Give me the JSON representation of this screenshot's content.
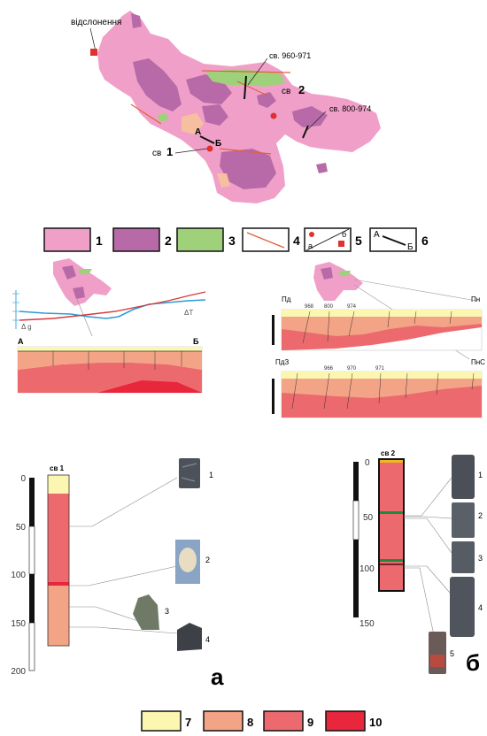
{
  "map": {
    "outcrop_label": "відслонення",
    "profile_labels": {
      "pr_960_971": "св. 960-971",
      "pr_800_974": "св. 800-974"
    },
    "well_1": {
      "prefix": "св",
      "number": "1"
    },
    "well_2": {
      "prefix": "св",
      "number": "2"
    },
    "section_letters": {
      "a": "А",
      "b": "Б"
    }
  },
  "legend_top": {
    "items": [
      {
        "num": "1",
        "color": "#f0a0c8"
      },
      {
        "num": "2",
        "color": "#b86aa8"
      },
      {
        "num": "3",
        "color": "#9fd07a"
      },
      {
        "num": "4",
        "line_color": "#e0603a"
      },
      {
        "num": "5",
        "sub_a": "а",
        "sub_b": "б"
      },
      {
        "num": "6",
        "letter_a": "А",
        "letter_b": "Б"
      }
    ]
  },
  "sections": {
    "left": {
      "end_a": "А",
      "end_b": "Б",
      "t_label": "ΔT",
      "g_label": "Δ g"
    },
    "right": {
      "upper": {
        "left": "Пд",
        "right": "Пн",
        "wells": [
          "968",
          "800",
          "974",
          "",
          "",
          "",
          "",
          ""
        ]
      },
      "lower": {
        "left": "ПдЗ",
        "right": "ПнС",
        "wells": [
          "",
          "966",
          "970",
          "971",
          "",
          "",
          "",
          ""
        ]
      }
    }
  },
  "column_a": {
    "title": "св 1",
    "panel_letter": "а",
    "axis_ticks": [
      "0",
      "50",
      "100",
      "150",
      "200"
    ],
    "sample_numbers": [
      "1",
      "2",
      "3",
      "4"
    ]
  },
  "column_b": {
    "title": "св 2",
    "panel_letter": "б",
    "axis_ticks": [
      "0",
      "50",
      "100",
      "150"
    ],
    "sample_numbers": [
      "1",
      "2",
      "3",
      "4",
      "5"
    ]
  },
  "legend_bottom": {
    "items": [
      {
        "num": "7",
        "color": "#fbf7b0"
      },
      {
        "num": "8",
        "color": "#f4a486"
      },
      {
        "num": "9",
        "color": "#ec6a6e"
      },
      {
        "num": "10",
        "color": "#e8263c"
      }
    ]
  },
  "colors": {
    "granite_pink": "#f0a0c8",
    "granite_purple": "#b86aa8",
    "green_unit": "#9fd07a",
    "peach_unit": "#f6c0a0",
    "fault_red": "#e0603a"
  }
}
